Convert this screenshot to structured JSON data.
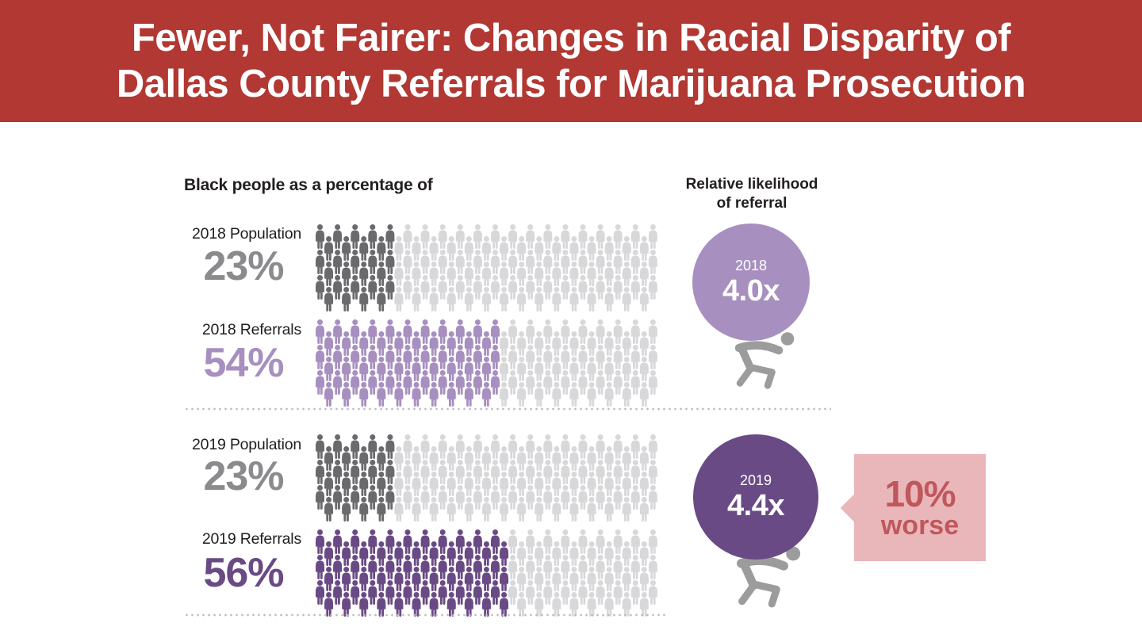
{
  "banner": {
    "line1": "Fewer, Not Fairer: Changes in Racial Disparity of",
    "line2": "Dallas County Referrals for Marijuana Prosecution",
    "bg_color": "#b13833"
  },
  "left_section": {
    "heading": "Black people as a percentage of"
  },
  "right_section": {
    "heading_line1": "Relative likelihood",
    "heading_line2": "of referral"
  },
  "chart_data": {
    "type": "pictograph",
    "title": "Fewer, Not Fairer: Changes in Racial Disparity of Dallas County Referrals for Marijuana Prosecution",
    "subtitle_left": "Black people as a percentage of",
    "subtitle_right": "Relative likelihood of referral",
    "unit": "percent of people icons filled",
    "rows": [
      {
        "label": "2018 Population",
        "value": 23,
        "display": "23%",
        "text_color": "#8b8a8d",
        "icon_color": "#6a696d"
      },
      {
        "label": "2018 Referrals",
        "value": 54,
        "display": "54%",
        "text_color": "#a78fc0",
        "icon_color": "#a78fc0"
      },
      {
        "label": "2019 Population",
        "value": 23,
        "display": "23%",
        "text_color": "#8b8a8d",
        "icon_color": "#6a696d"
      },
      {
        "label": "2019 Referrals",
        "value": 56,
        "display": "56%",
        "text_color": "#6a4a85",
        "icon_color": "#6a4a85"
      }
    ],
    "icon_base_color": "#d8d8da",
    "likelihood": [
      {
        "year": "2018",
        "value": "4.0x",
        "circle_color": "#a78fbf"
      },
      {
        "year": "2019",
        "value": "4.4x",
        "circle_color": "#6a4a85"
      }
    ],
    "callout": {
      "line1": "10%",
      "line2": "worse",
      "bg_color": "#e9b7ba",
      "text_color": "#c0575c"
    },
    "carrier_color": "#9c9c9c"
  }
}
